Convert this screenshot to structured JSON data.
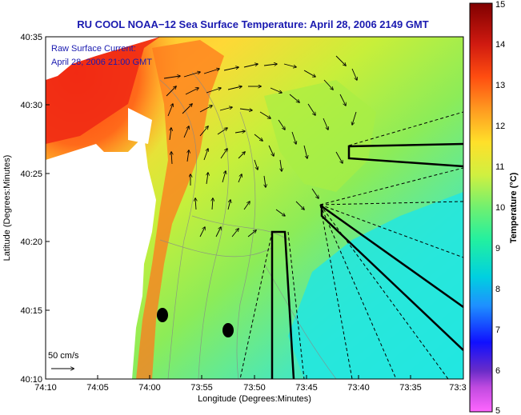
{
  "title": "RU COOL  NOAA−12  Sea Surface Temperature:  April 28, 2006 2149 GMT",
  "annotation": {
    "line1": "Raw Surface Current:",
    "line2": "April 28, 2006 21:00 GMT"
  },
  "axes": {
    "xlabel": "Longitude (Degrees:Minutes)",
    "ylabel": "Latitude (Degrees:Minutes)",
    "x_ticks": [
      "74:10",
      "74:05",
      "74:00",
      "73:55",
      "73:50",
      "73:45",
      "73:40",
      "73:35",
      "73:3"
    ],
    "y_ticks": [
      "40:35",
      "40:30",
      "40:25",
      "40:20",
      "40:15",
      "40:10"
    ]
  },
  "scale_arrow": {
    "label": "50 cm/s"
  },
  "colorbar": {
    "label": "Temperature (°C)",
    "min": 5,
    "max": 15,
    "ticks": [
      "15",
      "14",
      "13",
      "12",
      "11",
      "10",
      "9",
      "8",
      "7",
      "6",
      "5"
    ],
    "colors": [
      "#ff66ff",
      "#6a2cc8",
      "#1010ff",
      "#1e90ff",
      "#00d0e0",
      "#22f0a0",
      "#70f070",
      "#d0f040",
      "#ffe02a",
      "#ff9a20",
      "#ff4d10",
      "#c01010",
      "#800000"
    ]
  },
  "map_colors": {
    "land": "#ffffff",
    "warm_coastal": "#ff5a1a",
    "mid": "#ffcc33",
    "shelf": "#b8ef3a",
    "cool_offshore": "#55e8b0",
    "cold": "#1ee6e6"
  }
}
